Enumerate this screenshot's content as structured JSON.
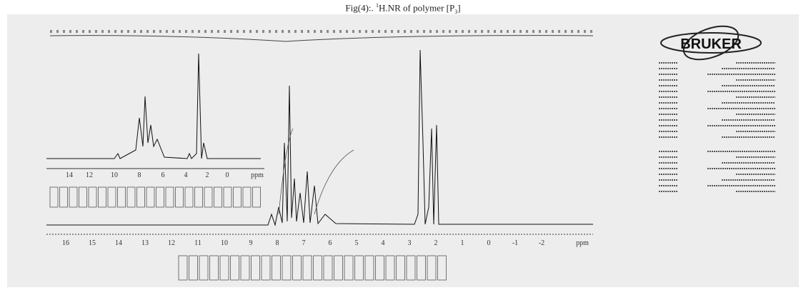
{
  "caption": {
    "prefix": "Fig(4):. ",
    "sup": "1",
    "mid": "H.NR of polymer [P",
    "sub": "3",
    "suffix": "]"
  },
  "logo": "BRUKER",
  "main_axis": {
    "labels": [
      "16",
      "15",
      "14",
      "13",
      "12",
      "11",
      "10",
      "9",
      "8",
      "7",
      "6",
      "5",
      "4",
      "3",
      "2",
      "1",
      "0",
      "-1",
      "-2",
      "ppm"
    ]
  },
  "inset_axis": {
    "labels": [
      "14",
      "12",
      "10",
      "8",
      "6",
      "4",
      "2",
      "0",
      "ppm"
    ]
  }
}
